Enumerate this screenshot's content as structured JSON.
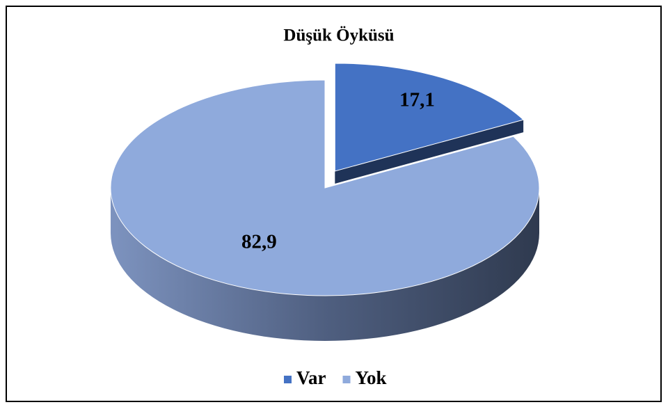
{
  "chart_data": {
    "type": "pie",
    "title": "Düşük Öyküsü",
    "categories": [
      "Var",
      "Yok"
    ],
    "values": [
      17.1,
      82.9
    ],
    "value_labels": [
      "17,1",
      "82,9"
    ],
    "colors": [
      "#4472c4",
      "#8faadc"
    ],
    "legend": "bottom",
    "exploded": [
      true,
      false
    ]
  }
}
